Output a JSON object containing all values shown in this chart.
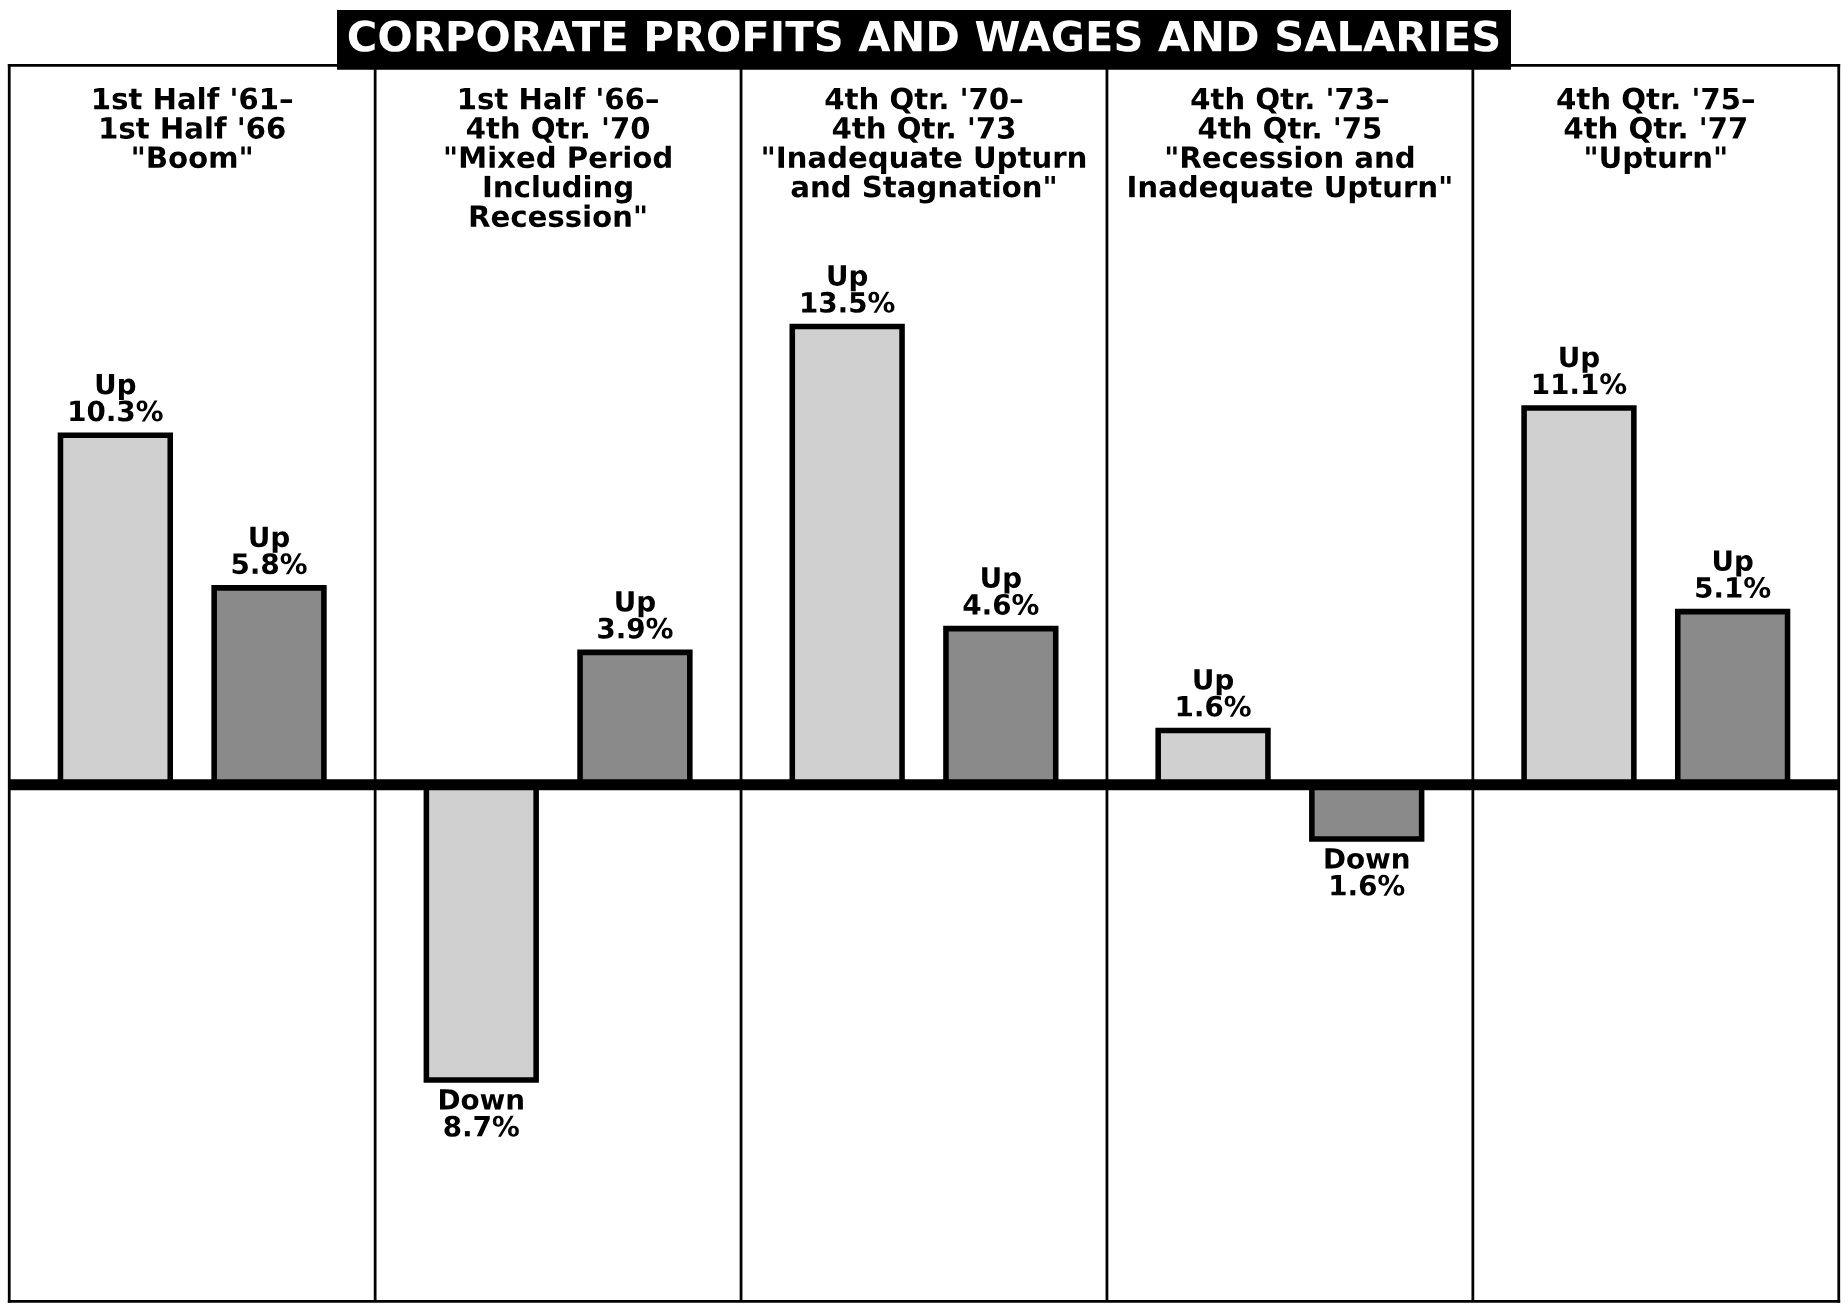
{
  "chart_data": {
    "type": "bar",
    "title": "CORPORATE PROFITS AND WAGES AND SALARIES",
    "categories": [
      "1st Half '61–\n1st Half '66\n\"Boom\"",
      "1st Half '66–\n4th Qtr. '70\n\"Mixed Period\nIncluding\nRecession\"",
      "4th Qtr. '70–\n4th Qtr. '73\n\"Inadequate Upturn\nand Stagnation\"",
      "4th Qtr. '73–\n4th Qtr. '75\n\"Recession and\nInadequate Upturn\"",
      "4th Qtr. '75–\n4th Qtr. '77\n\"Upturn\""
    ],
    "series": [
      {
        "color": "#d0d0d0",
        "values": [
          10.3,
          -8.7,
          13.5,
          1.6,
          11.1
        ],
        "value_labels": [
          "Up\n10.3%",
          "Down\n8.7%",
          "Up\n13.5%",
          "Up\n1.6%",
          "Up\n11.1%"
        ]
      },
      {
        "color": "#8a8a8a",
        "values": [
          5.8,
          3.9,
          4.6,
          -1.6,
          5.1
        ],
        "value_labels": [
          "Up\n5.8%",
          "Up\n3.9%",
          "Up\n4.6%",
          "Down\n1.6%",
          "Up\n5.1%"
        ]
      }
    ],
    "tick_labels": "x",
    "legend": false
  }
}
